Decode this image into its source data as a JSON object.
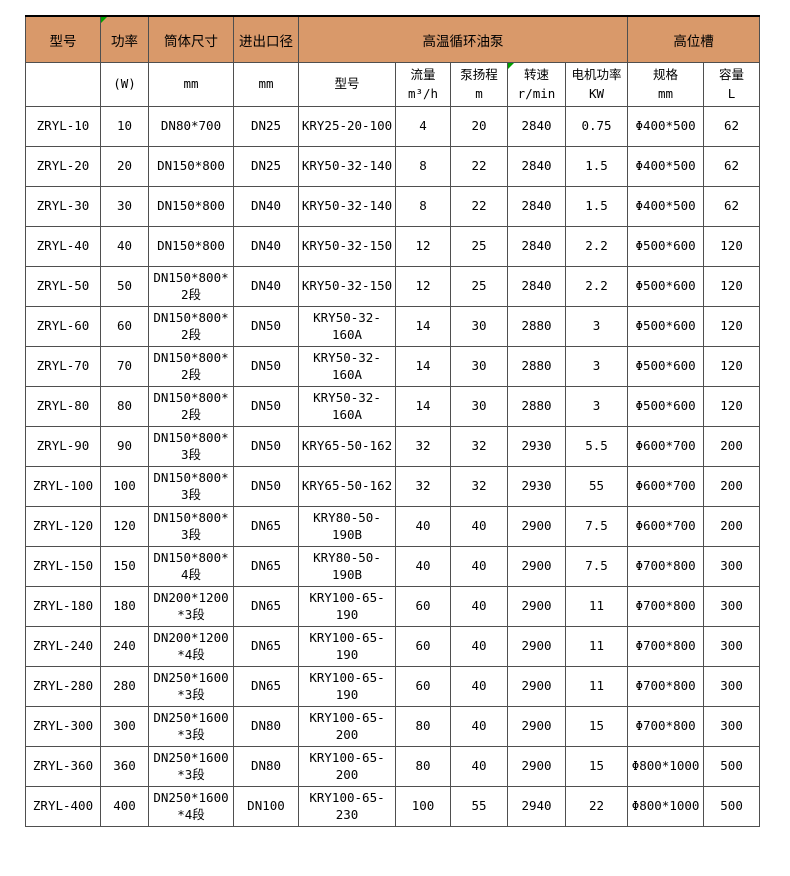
{
  "colors": {
    "header_bg": "#D9996A",
    "grid_line": "#4F4F4F",
    "outer_border": "#000000",
    "error_indicator": "#00A000",
    "text": "#000000",
    "background": "#FFFFFF"
  },
  "table": {
    "group_headers": [
      {
        "label": "型号",
        "colspan": 1,
        "name": "model"
      },
      {
        "label": "功率",
        "colspan": 1,
        "name": "power",
        "error_indicator": true
      },
      {
        "label": "筒体尺寸",
        "colspan": 1,
        "name": "cylinder-size"
      },
      {
        "label": "进出口径",
        "colspan": 1,
        "name": "inlet-outlet-diameter"
      },
      {
        "label": "高温循环油泵",
        "colspan": 5,
        "name": "high-temp-circulating-oil-pump"
      },
      {
        "label": "高位槽",
        "colspan": 2,
        "name": "elevated-tank"
      }
    ],
    "sub_headers": [
      {
        "line1": ""
      },
      {
        "line1": "(W)"
      },
      {
        "line1": "mm"
      },
      {
        "line1": "mm"
      },
      {
        "line1": "型号"
      },
      {
        "line1": "流量",
        "line2": "m³/h"
      },
      {
        "line1": "泵扬程",
        "line2": "m"
      },
      {
        "line1": "转速",
        "line2": "r/min",
        "error_indicator": true
      },
      {
        "line1": "电机功率",
        "line2": "KW"
      },
      {
        "line1": "规格",
        "line2": "mm"
      },
      {
        "line1": "容量",
        "line2": "L"
      }
    ],
    "rows": [
      [
        "ZRYL-10",
        "10",
        "DN80*700",
        "DN25",
        "KRY25-20-100",
        "4",
        "20",
        "2840",
        "0.75",
        "Φ400*500",
        "62"
      ],
      [
        "ZRYL-20",
        "20",
        "DN150*800",
        "DN25",
        "KRY50-32-140",
        "8",
        "22",
        "2840",
        "1.5",
        "Φ400*500",
        "62"
      ],
      [
        "ZRYL-30",
        "30",
        "DN150*800",
        "DN40",
        "KRY50-32-140",
        "8",
        "22",
        "2840",
        "1.5",
        "Φ400*500",
        "62"
      ],
      [
        "ZRYL-40",
        "40",
        "DN150*800",
        "DN40",
        "KRY50-32-150",
        "12",
        "25",
        "2840",
        "2.2",
        "Φ500*600",
        "120"
      ],
      [
        "ZRYL-50",
        "50",
        "DN150*800*2段",
        "DN40",
        "KRY50-32-150",
        "12",
        "25",
        "2840",
        "2.2",
        "Φ500*600",
        "120"
      ],
      [
        "ZRYL-60",
        "60",
        "DN150*800*2段",
        "DN50",
        "KRY50-32-160A",
        "14",
        "30",
        "2880",
        "3",
        "Φ500*600",
        "120"
      ],
      [
        "ZRYL-70",
        "70",
        "DN150*800*2段",
        "DN50",
        "KRY50-32-160A",
        "14",
        "30",
        "2880",
        "3",
        "Φ500*600",
        "120"
      ],
      [
        "ZRYL-80",
        "80",
        "DN150*800*2段",
        "DN50",
        "KRY50-32-160A",
        "14",
        "30",
        "2880",
        "3",
        "Φ500*600",
        "120"
      ],
      [
        "ZRYL-90",
        "90",
        "DN150*800*3段",
        "DN50",
        "KRY65-50-162",
        "32",
        "32",
        "2930",
        "5.5",
        "Φ600*700",
        "200"
      ],
      [
        "ZRYL-100",
        "100",
        "DN150*800*3段",
        "DN50",
        "KRY65-50-162",
        "32",
        "32",
        "2930",
        "55",
        "Φ600*700",
        "200"
      ],
      [
        "ZRYL-120",
        "120",
        "DN150*800*3段",
        "DN65",
        "KRY80-50-190B",
        "40",
        "40",
        "2900",
        "7.5",
        "Φ600*700",
        "200"
      ],
      [
        "ZRYL-150",
        "150",
        "DN150*800*4段",
        "DN65",
        "KRY80-50-190B",
        "40",
        "40",
        "2900",
        "7.5",
        "Φ700*800",
        "300"
      ],
      [
        "ZRYL-180",
        "180",
        "DN200*1200*3段",
        "DN65",
        "KRY100-65-190",
        "60",
        "40",
        "2900",
        "11",
        "Φ700*800",
        "300"
      ],
      [
        "ZRYL-240",
        "240",
        "DN200*1200*4段",
        "DN65",
        "KRY100-65-190",
        "60",
        "40",
        "2900",
        "11",
        "Φ700*800",
        "300"
      ],
      [
        "ZRYL-280",
        "280",
        "DN250*1600*3段",
        "DN65",
        "KRY100-65-190",
        "60",
        "40",
        "2900",
        "11",
        "Φ700*800",
        "300"
      ],
      [
        "ZRYL-300",
        "300",
        "DN250*1600*3段",
        "DN80",
        "KRY100-65-200",
        "80",
        "40",
        "2900",
        "15",
        "Φ700*800",
        "300"
      ],
      [
        "ZRYL-360",
        "360",
        "DN250*1600*3段",
        "DN80",
        "KRY100-65-200",
        "80",
        "40",
        "2900",
        "15",
        "Φ800*1000",
        "500"
      ],
      [
        "ZRYL-400",
        "400",
        "DN250*1600*4段",
        "DN100",
        "KRY100-65-230",
        "100",
        "55",
        "2940",
        "22",
        "Φ800*1000",
        "500"
      ]
    ]
  }
}
